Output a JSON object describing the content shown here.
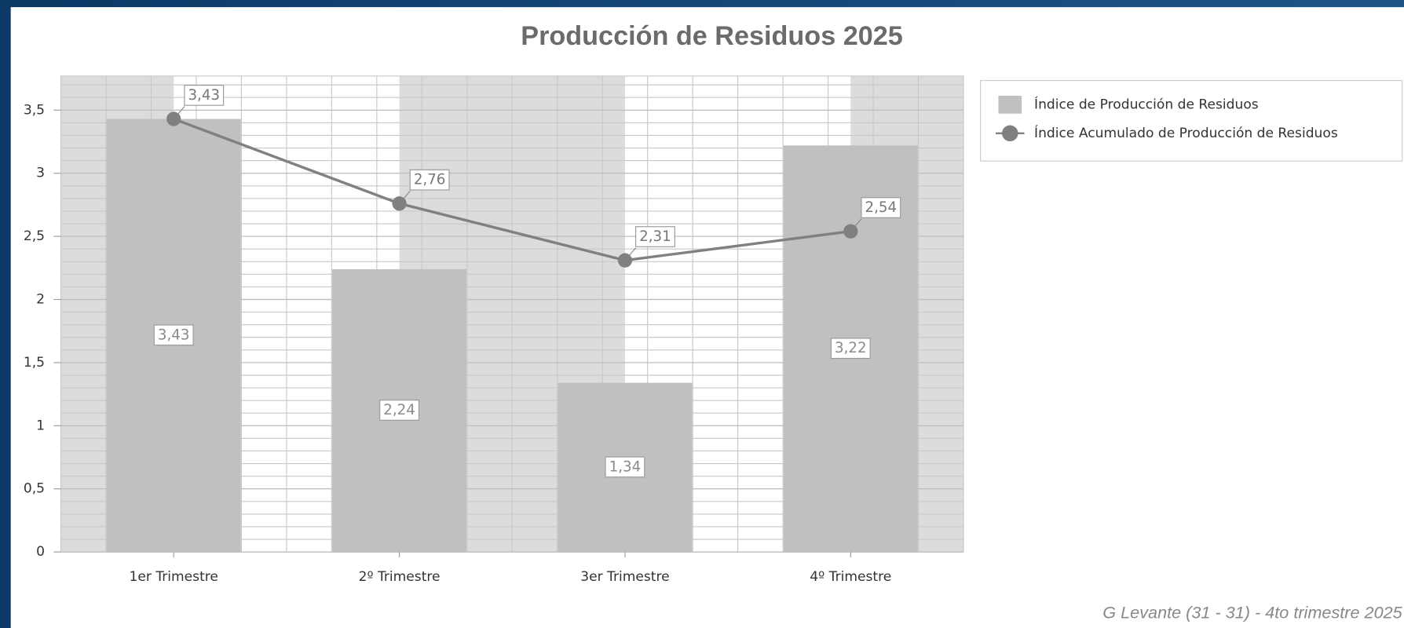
{
  "chart_data": {
    "type": "combo",
    "title": "Producción de Residuos 2025",
    "categories": [
      "1er Trimestre",
      "2º Trimestre",
      "3er Trimestre",
      "4º Trimestre"
    ],
    "series": [
      {
        "name": "Índice de Producción de Residuos",
        "type": "bar",
        "color": "#c0c0c0",
        "values": [
          3.43,
          2.24,
          1.34,
          3.22
        ],
        "value_labels": [
          "3,43",
          "2,24",
          "1,34",
          "3,22"
        ]
      },
      {
        "name": "Índice Acumulado de Producción de Residuos",
        "type": "line",
        "color": "#808080",
        "values": [
          3.43,
          2.76,
          2.31,
          2.54
        ],
        "value_labels": [
          "3,43",
          "2,76",
          "2,31",
          "2,54"
        ]
      }
    ],
    "ylim": [
      0,
      3.77
    ],
    "yticks": [
      0,
      {
        "value": 0.5,
        "label": "0,5"
      },
      1,
      {
        "value": 1.5,
        "label": "1,5"
      },
      2,
      {
        "value": 2.5,
        "label": "2,5"
      },
      3,
      {
        "value": 3.5,
        "label": "3,5"
      }
    ],
    "grid": true,
    "legend": "right",
    "footer": "G Levante (31 - 31) - 4to trimestre 2025"
  }
}
